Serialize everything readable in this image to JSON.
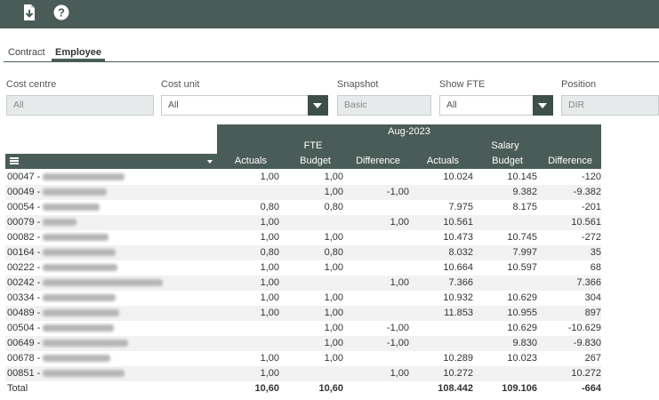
{
  "tabs": [
    {
      "label": "Contract"
    },
    {
      "label": "Employee"
    }
  ],
  "filters": {
    "cost_centre": {
      "label": "Cost centre",
      "value": "All"
    },
    "cost_unit": {
      "label": "Cost unit",
      "value": "All"
    },
    "snapshot": {
      "label": "Snapshot",
      "value": "Basic"
    },
    "show_fte": {
      "label": "Show FTE",
      "value": "All"
    },
    "position": {
      "label": "Position",
      "value": "DIR"
    }
  },
  "table": {
    "period": "Aug-2023",
    "groups": {
      "fte": "FTE",
      "salary": "Salary"
    },
    "columns": {
      "fte_actuals": "Actuals",
      "fte_budget": "Budget",
      "fte_difference": "Difference",
      "sal_actuals": "Actuals",
      "sal_budget": "Budget",
      "sal_difference": "Difference"
    },
    "rows": [
      {
        "id": "00047 -",
        "fa": "1,00",
        "fb": "1,00",
        "fd": "",
        "sa": "10.024",
        "sb": "10.145",
        "sd": "-120"
      },
      {
        "id": "00049 -",
        "fa": "",
        "fb": "1,00",
        "fd": "-1,00",
        "sa": "",
        "sb": "9.382",
        "sd": "-9.382"
      },
      {
        "id": "00054 -",
        "fa": "0,80",
        "fb": "0,80",
        "fd": "",
        "sa": "7.975",
        "sb": "8.175",
        "sd": "-201"
      },
      {
        "id": "00079 -",
        "fa": "1,00",
        "fb": "",
        "fd": "1,00",
        "sa": "10.561",
        "sb": "",
        "sd": "10.561"
      },
      {
        "id": "00082 -",
        "fa": "1,00",
        "fb": "1,00",
        "fd": "",
        "sa": "10.473",
        "sb": "10.745",
        "sd": "-272"
      },
      {
        "id": "00164 -",
        "fa": "0,80",
        "fb": "0,80",
        "fd": "",
        "sa": "8.032",
        "sb": "7.997",
        "sd": "35"
      },
      {
        "id": "00222 -",
        "fa": "1,00",
        "fb": "1,00",
        "fd": "",
        "sa": "10.664",
        "sb": "10.597",
        "sd": "68"
      },
      {
        "id": "00242 -",
        "fa": "1,00",
        "fb": "",
        "fd": "1,00",
        "sa": "7.366",
        "sb": "",
        "sd": "7.366"
      },
      {
        "id": "00334 -",
        "fa": "1,00",
        "fb": "1,00",
        "fd": "",
        "sa": "10.932",
        "sb": "10.629",
        "sd": "304"
      },
      {
        "id": "00489 -",
        "fa": "1,00",
        "fb": "1,00",
        "fd": "",
        "sa": "11.853",
        "sb": "10.955",
        "sd": "897"
      },
      {
        "id": "00504 -",
        "fa": "",
        "fb": "1,00",
        "fd": "-1,00",
        "sa": "",
        "sb": "10.629",
        "sd": "-10.629"
      },
      {
        "id": "00649 -",
        "fa": "",
        "fb": "1,00",
        "fd": "-1,00",
        "sa": "",
        "sb": "9.830",
        "sd": "-9.830"
      },
      {
        "id": "00678 -",
        "fa": "1,00",
        "fb": "1,00",
        "fd": "",
        "sa": "10.289",
        "sb": "10.023",
        "sd": "267"
      },
      {
        "id": "00851 -",
        "fa": "1,00",
        "fb": "",
        "fd": "1,00",
        "sa": "10.272",
        "sb": "",
        "sd": "10.272"
      }
    ],
    "total": {
      "label": "Total",
      "fa": "10,60",
      "fb": "10,60",
      "fd": "",
      "sa": "108.442",
      "sb": "109.106",
      "sd": "-664"
    }
  }
}
